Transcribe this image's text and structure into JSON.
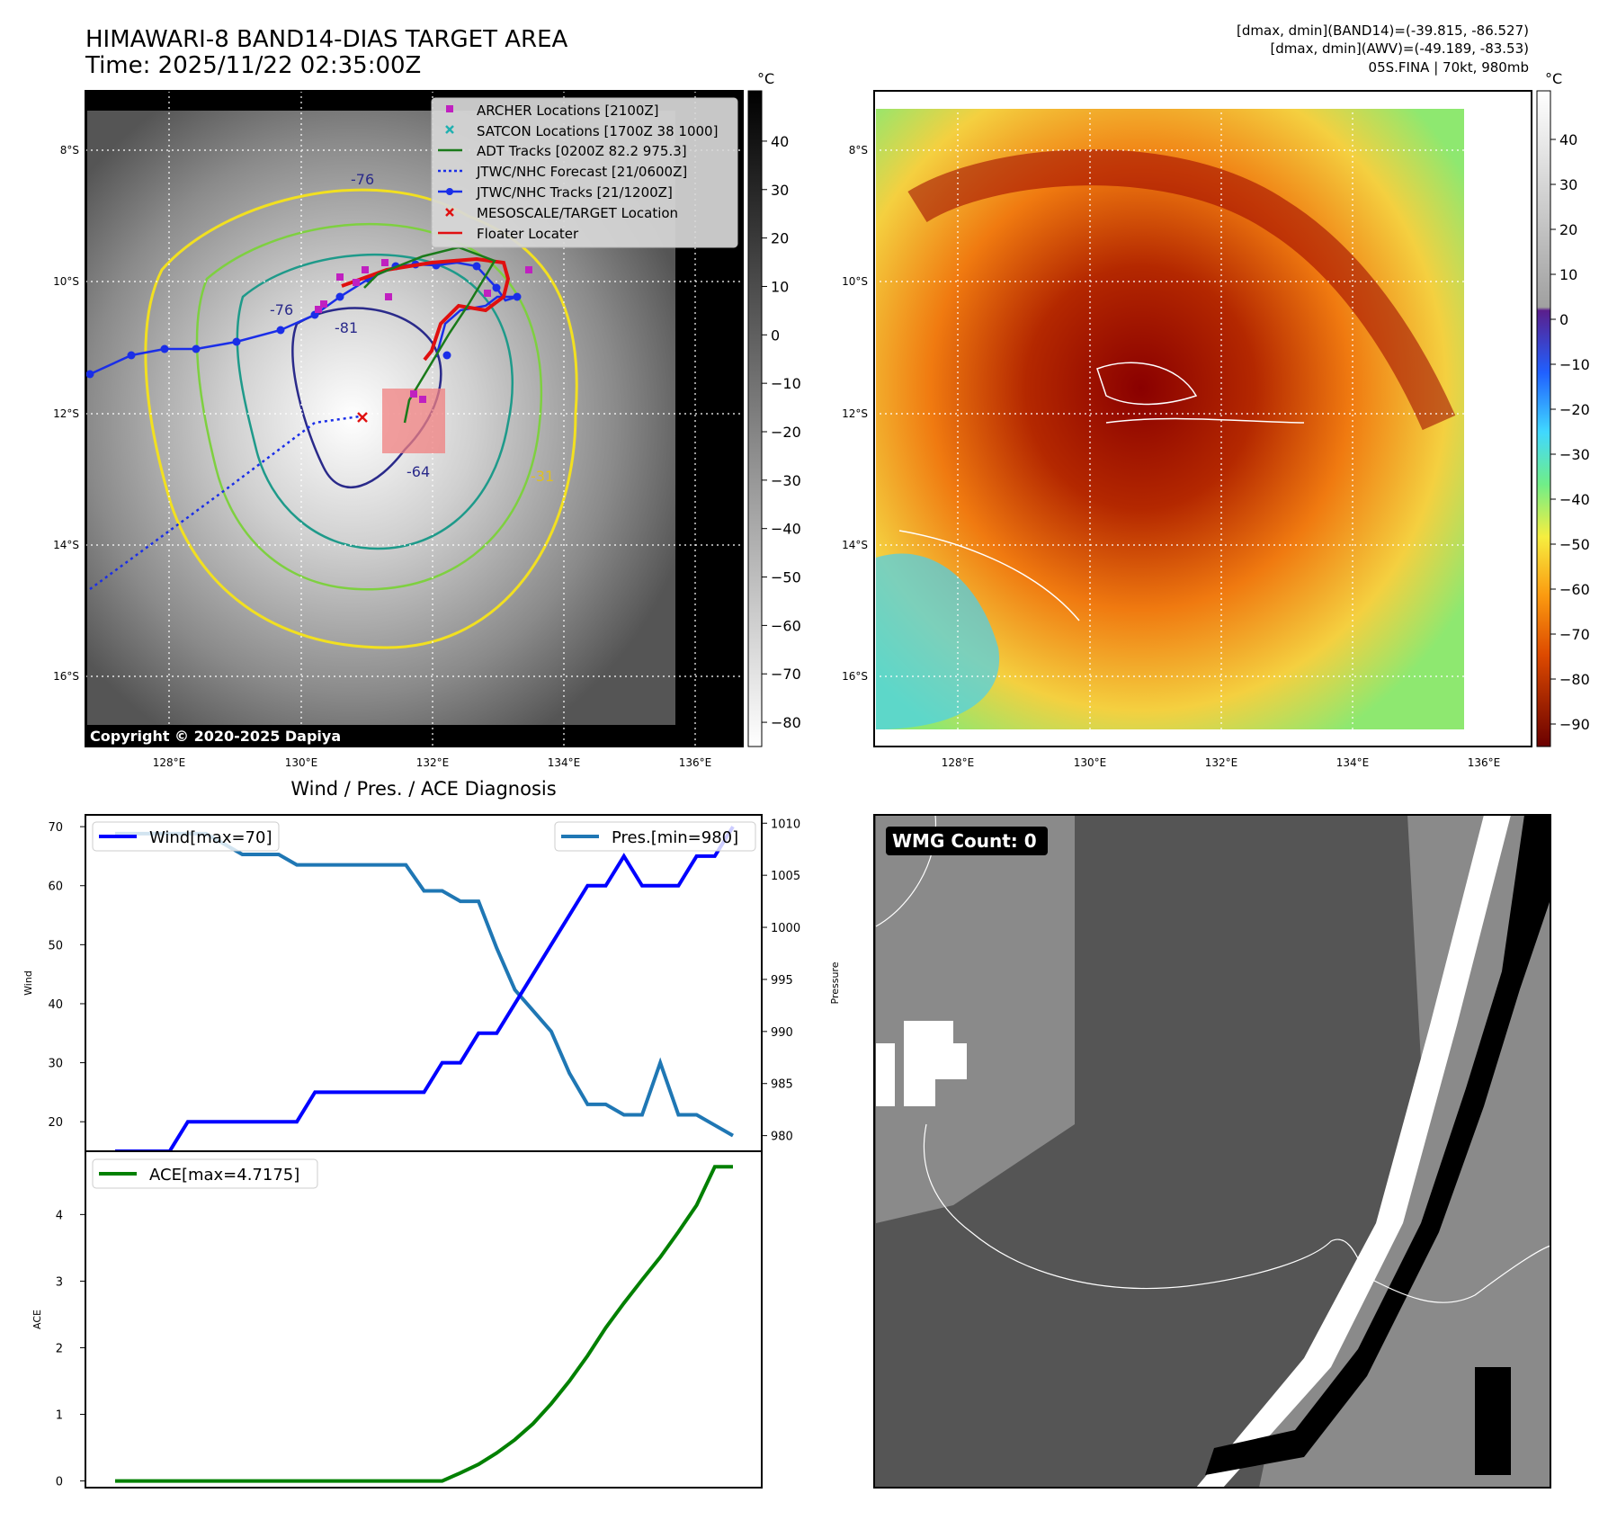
{
  "header": {
    "title_line1": "HIMAWARI-8 BAND14-DIAS TARGET AREA",
    "title_line2": "Time: 2025/11/22 02:35:00Z",
    "info_line1": "[dmax, dmin](BAND14)=(-39.815, -86.527)",
    "info_line2": "[dmax, dmin](AWV)=(-49.189, -83.53)",
    "info_line3": "05S.FINA | 70kt, 980mb"
  },
  "map_axes": {
    "lat_ticks": [
      "8°S",
      "10°S",
      "12°S",
      "14°S",
      "16°S"
    ],
    "lon_ticks": [
      "128°E",
      "130°E",
      "132°E",
      "134°E",
      "136°E"
    ],
    "unit": "°C"
  },
  "ir_panel": {
    "colorbar_ticks": [
      "40",
      "30",
      "20",
      "10",
      "0",
      "−10",
      "−20",
      "−30",
      "−40",
      "−50",
      "−60",
      "−70",
      "−80"
    ],
    "copyright": "Copyright © 2020-2025 Dapiya",
    "contour_labels": [
      "-76",
      "-76",
      "-81",
      "-64",
      "-31"
    ],
    "legend": [
      {
        "label": "ARCHER Locations [2100Z]",
        "color": "#c020c0",
        "marker": "square"
      },
      {
        "label": "SATCON Locations [1700Z 38 1000]",
        "color": "#20b0b0",
        "marker": "x"
      },
      {
        "label": "ADT Tracks [0200Z 82.2 975.3]",
        "color": "#1a7a1a",
        "marker": "line"
      },
      {
        "label": "JTWC/NHC Forecast [21/0600Z]",
        "color": "#1a2ee8",
        "marker": "dotted"
      },
      {
        "label": "JTWC/NHC Tracks [21/1200Z]",
        "color": "#1a2ee8",
        "marker": "line-dot"
      },
      {
        "label": "MESOSCALE/TARGET Location",
        "color": "#e01010",
        "marker": "x"
      },
      {
        "label": "Floater Locater",
        "color": "#e01010",
        "marker": "line"
      }
    ]
  },
  "awv_panel": {
    "colorbar_ticks": [
      "40",
      "30",
      "20",
      "10",
      "0",
      "−10",
      "−20",
      "−30",
      "−40",
      "−50",
      "−60",
      "−70",
      "−80",
      "−90"
    ]
  },
  "wmg_panel": {
    "label": "WMG Count: 0"
  },
  "chart_data": [
    {
      "type": "line",
      "title": "Wind / Pres. / ACE Diagnosis",
      "ylabel": "Wind",
      "ylabel_right": "Pressure",
      "ylim": [
        15,
        72
      ],
      "ylim_right": [
        978.5,
        1010.8
      ],
      "yticks": [
        20,
        30,
        40,
        50,
        60,
        70
      ],
      "yticks_right": [
        980,
        985,
        990,
        995,
        1000,
        1005,
        1010
      ],
      "x": [
        0,
        1,
        2,
        3,
        4,
        5,
        6,
        7,
        8,
        9,
        10,
        11,
        12,
        13,
        14,
        15,
        16,
        17,
        18,
        19,
        20,
        21,
        22,
        23,
        24,
        25,
        26,
        27,
        28,
        29,
        30,
        31,
        32,
        33,
        34
      ],
      "series": [
        {
          "name": "Wind[max=70]",
          "axis": "left",
          "color": "#0000ff",
          "values": [
            15,
            15,
            15,
            15,
            20,
            20,
            20,
            20,
            20,
            20,
            20,
            25,
            25,
            25,
            25,
            25,
            25,
            25,
            30,
            30,
            35,
            35,
            40,
            45,
            50,
            55,
            60,
            60,
            65,
            60,
            60,
            60,
            65,
            65,
            70
          ]
        },
        {
          "name": "Pres.[min=980]",
          "axis": "right",
          "color": "#1f77b4",
          "values": [
            1009,
            1009,
            1009,
            1009,
            1009,
            1009,
            1008,
            1007,
            1007,
            1007,
            1006,
            1006,
            1006,
            1006,
            1006,
            1006,
            1006,
            1003.5,
            1003.5,
            1002.5,
            1002.5,
            998,
            994,
            992,
            990,
            986,
            983,
            983,
            982,
            982,
            987,
            982,
            982,
            981,
            980
          ]
        }
      ]
    },
    {
      "type": "line",
      "ylabel": "ACE",
      "ylim": [
        -0.1,
        4.95
      ],
      "yticks": [
        0,
        1,
        2,
        3,
        4
      ],
      "x": [
        0,
        1,
        2,
        3,
        4,
        5,
        6,
        7,
        8,
        9,
        10,
        11,
        12,
        13,
        14,
        15,
        16,
        17,
        18,
        19,
        20,
        21,
        22,
        23,
        24,
        25,
        26,
        27,
        28,
        29,
        30,
        31,
        32,
        33,
        34
      ],
      "series": [
        {
          "name": "ACE[max=4.7175]",
          "color": "#008000",
          "values": [
            0,
            0,
            0,
            0,
            0,
            0,
            0,
            0,
            0,
            0,
            0,
            0,
            0,
            0,
            0,
            0,
            0,
            0,
            0,
            0.12,
            0.25,
            0.42,
            0.62,
            0.86,
            1.16,
            1.5,
            1.88,
            2.3,
            2.67,
            3.02,
            3.36,
            3.74,
            4.14,
            4.7175,
            4.7175
          ]
        }
      ]
    }
  ]
}
